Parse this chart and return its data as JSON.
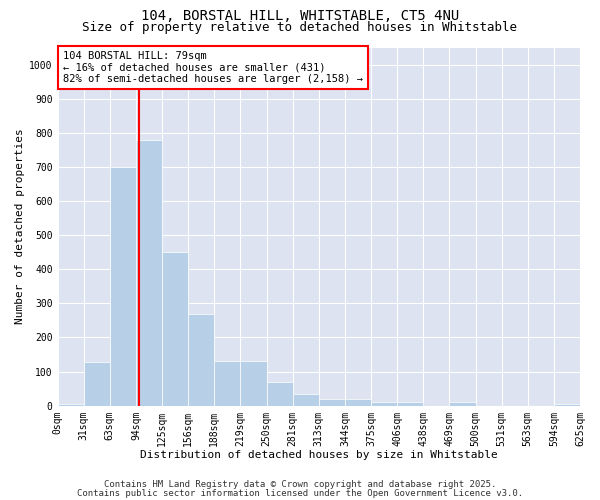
{
  "title1": "104, BORSTAL HILL, WHITSTABLE, CT5 4NU",
  "title2": "Size of property relative to detached houses in Whitstable",
  "xlabel": "Distribution of detached houses by size in Whitstable",
  "ylabel": "Number of detached properties",
  "bin_labels": [
    "0sqm",
    "31sqm",
    "63sqm",
    "94sqm",
    "125sqm",
    "156sqm",
    "188sqm",
    "219sqm",
    "250sqm",
    "281sqm",
    "313sqm",
    "344sqm",
    "375sqm",
    "406sqm",
    "438sqm",
    "469sqm",
    "500sqm",
    "531sqm",
    "563sqm",
    "594sqm",
    "625sqm"
  ],
  "bar_values": [
    5,
    128,
    700,
    780,
    450,
    270,
    130,
    130,
    70,
    35,
    20,
    20,
    10,
    10,
    0,
    10,
    0,
    0,
    0,
    5
  ],
  "bar_color": "#b8cfe8",
  "vline_color": "red",
  "vline_x_index": 2.62,
  "annotation_text": "104 BORSTAL HILL: 79sqm\n← 16% of detached houses are smaller (431)\n82% of semi-detached houses are larger (2,158) →",
  "annotation_fontsize": 7.5,
  "ylim": [
    0,
    1050
  ],
  "yticks": [
    0,
    100,
    200,
    300,
    400,
    500,
    600,
    700,
    800,
    900,
    1000
  ],
  "fig_bg_color": "#ffffff",
  "plot_bg_color": "#dde3f0",
  "grid_color": "#ffffff",
  "title_fontsize": 10,
  "subtitle_fontsize": 9,
  "axis_label_fontsize": 8,
  "tick_fontsize": 7,
  "footer1": "Contains HM Land Registry data © Crown copyright and database right 2025.",
  "footer2": "Contains public sector information licensed under the Open Government Licence v3.0.",
  "footer_fontsize": 6.5
}
